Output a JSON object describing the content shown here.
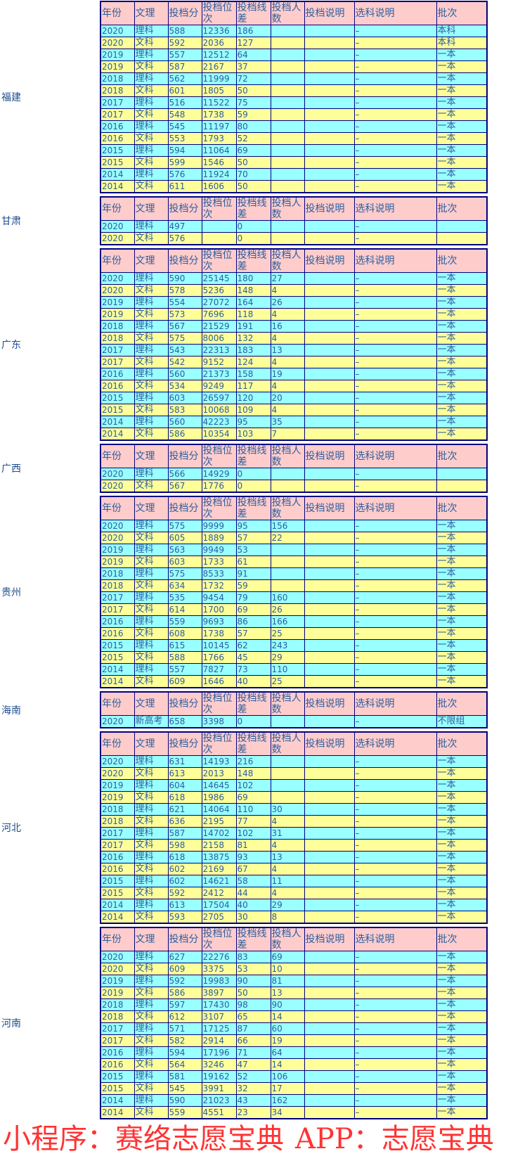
{
  "headers": [
    "年份",
    "文理",
    "投档分",
    "投档位次",
    "投档线差",
    "投档人数",
    "投档说明",
    "选科说明",
    "批次"
  ],
  "provinces": [
    {
      "name": "福建",
      "rows": [
        [
          "2020",
          "理科",
          "588",
          "12336",
          "186",
          "",
          "",
          "–",
          "本科"
        ],
        [
          "2020",
          "文科",
          "592",
          "2036",
          "127",
          "",
          "",
          "–",
          "本科"
        ],
        [
          "2019",
          "理科",
          "557",
          "12512",
          "64",
          "",
          "",
          "–",
          "一本"
        ],
        [
          "2019",
          "文科",
          "587",
          "2167",
          "37",
          "",
          "",
          "–",
          "一本"
        ],
        [
          "2018",
          "理科",
          "562",
          "11999",
          "72",
          "",
          "",
          "–",
          "一本"
        ],
        [
          "2018",
          "文科",
          "601",
          "1805",
          "50",
          "",
          "",
          "–",
          "一本"
        ],
        [
          "2017",
          "理科",
          "516",
          "11522",
          "75",
          "",
          "",
          "–",
          "一本"
        ],
        [
          "2017",
          "文科",
          "548",
          "1738",
          "59",
          "",
          "",
          "–",
          "一本"
        ],
        [
          "2016",
          "理科",
          "545",
          "11197",
          "80",
          "",
          "",
          "–",
          "一本"
        ],
        [
          "2016",
          "文科",
          "553",
          "1793",
          "52",
          "",
          "",
          "–",
          "一本"
        ],
        [
          "2015",
          "理科",
          "594",
          "11064",
          "69",
          "",
          "",
          "–",
          "一本"
        ],
        [
          "2015",
          "文科",
          "599",
          "1546",
          "50",
          "",
          "",
          "–",
          "一本"
        ],
        [
          "2014",
          "理科",
          "576",
          "11924",
          "70",
          "",
          "",
          "–",
          "一本"
        ],
        [
          "2014",
          "文科",
          "611",
          "1606",
          "50",
          "",
          "",
          "–",
          "一本"
        ]
      ]
    },
    {
      "name": "甘肃",
      "rows": [
        [
          "2020",
          "理科",
          "497",
          "",
          "0",
          "",
          "",
          "–",
          ""
        ],
        [
          "2020",
          "文科",
          "576",
          "",
          "0",
          "",
          "",
          "–",
          ""
        ]
      ]
    },
    {
      "name": "广东",
      "rows": [
        [
          "2020",
          "理科",
          "590",
          "25145",
          "180",
          "27",
          "",
          "–",
          "一本"
        ],
        [
          "2020",
          "文科",
          "578",
          "5236",
          "148",
          "4",
          "",
          "–",
          "一本"
        ],
        [
          "2019",
          "理科",
          "554",
          "27072",
          "164",
          "26",
          "",
          "–",
          "一本"
        ],
        [
          "2019",
          "文科",
          "573",
          "7696",
          "118",
          "4",
          "",
          "–",
          "一本"
        ],
        [
          "2018",
          "理科",
          "567",
          "21529",
          "191",
          "16",
          "",
          "–",
          "一本"
        ],
        [
          "2018",
          "文科",
          "575",
          "8006",
          "132",
          "4",
          "",
          "–",
          "一本"
        ],
        [
          "2017",
          "理科",
          "543",
          "22313",
          "183",
          "13",
          "",
          "–",
          "一本"
        ],
        [
          "2017",
          "文科",
          "542",
          "9152",
          "124",
          "4",
          "",
          "–",
          "一本"
        ],
        [
          "2016",
          "理科",
          "560",
          "21373",
          "158",
          "19",
          "",
          "–",
          "一本"
        ],
        [
          "2016",
          "文科",
          "534",
          "9249",
          "117",
          "4",
          "",
          "–",
          "一本"
        ],
        [
          "2015",
          "理科",
          "603",
          "26597",
          "120",
          "20",
          "",
          "–",
          "一本"
        ],
        [
          "2015",
          "文科",
          "583",
          "10068",
          "109",
          "4",
          "",
          "–",
          "一本"
        ],
        [
          "2014",
          "理科",
          "560",
          "42223",
          "95",
          "35",
          "",
          "–",
          "一本"
        ],
        [
          "2014",
          "文科",
          "586",
          "10354",
          "103",
          "7",
          "",
          "–",
          "一本"
        ]
      ]
    },
    {
      "name": "广西",
      "rows": [
        [
          "2020",
          "理科",
          "566",
          "14929",
          "0",
          "",
          "",
          "–",
          ""
        ],
        [
          "2020",
          "文科",
          "567",
          "1776",
          "0",
          "",
          "",
          "–",
          ""
        ]
      ]
    },
    {
      "name": "贵州",
      "rows": [
        [
          "2020",
          "理科",
          "575",
          "9999",
          "95",
          "156",
          "",
          "–",
          "一本"
        ],
        [
          "2020",
          "文科",
          "605",
          "1889",
          "57",
          "22",
          "",
          "–",
          "一本"
        ],
        [
          "2019",
          "理科",
          "563",
          "9949",
          "53",
          "",
          "",
          "–",
          "一本"
        ],
        [
          "2019",
          "文科",
          "603",
          "1733",
          "61",
          "",
          "",
          "–",
          "一本"
        ],
        [
          "2018",
          "理科",
          "575",
          "8533",
          "91",
          "",
          "",
          "–",
          "一本"
        ],
        [
          "2018",
          "文科",
          "634",
          "1732",
          "59",
          "",
          "",
          "–",
          "一本"
        ],
        [
          "2017",
          "理科",
          "535",
          "9454",
          "79",
          "160",
          "",
          "–",
          "一本"
        ],
        [
          "2017",
          "文科",
          "614",
          "1700",
          "69",
          "26",
          "",
          "–",
          "一本"
        ],
        [
          "2016",
          "理科",
          "559",
          "9693",
          "86",
          "166",
          "",
          "–",
          "一本"
        ],
        [
          "2016",
          "文科",
          "608",
          "1738",
          "57",
          "25",
          "",
          "–",
          "一本"
        ],
        [
          "2015",
          "理科",
          "615",
          "10145",
          "62",
          "243",
          "",
          "–",
          "一本"
        ],
        [
          "2015",
          "文科",
          "588",
          "1766",
          "45",
          "29",
          "",
          "–",
          "一本"
        ],
        [
          "2014",
          "理科",
          "557",
          "7827",
          "73",
          "110",
          "",
          "–",
          "一本"
        ],
        [
          "2014",
          "文科",
          "609",
          "1646",
          "40",
          "25",
          "",
          "–",
          "一本"
        ]
      ]
    },
    {
      "name": "海南",
      "rows": [
        [
          "2020",
          "新高考",
          "658",
          "3398",
          "0",
          "",
          "",
          "–",
          "不限组"
        ]
      ]
    },
    {
      "name": "河北",
      "rows": [
        [
          "2020",
          "理科",
          "631",
          "14193",
          "216",
          "",
          "",
          "–",
          "一本"
        ],
        [
          "2020",
          "文科",
          "613",
          "2013",
          "148",
          "",
          "",
          "–",
          "一本"
        ],
        [
          "2019",
          "理科",
          "604",
          "14645",
          "102",
          "",
          "",
          "–",
          "一本"
        ],
        [
          "2019",
          "文科",
          "618",
          "1986",
          "69",
          "",
          "",
          "–",
          "一本"
        ],
        [
          "2018",
          "理科",
          "621",
          "14064",
          "110",
          "30",
          "",
          "–",
          "一本"
        ],
        [
          "2018",
          "文科",
          "636",
          "2195",
          "77",
          "4",
          "",
          "–",
          "一本"
        ],
        [
          "2017",
          "理科",
          "587",
          "14702",
          "102",
          "31",
          "",
          "–",
          "一本"
        ],
        [
          "2017",
          "文科",
          "598",
          "2158",
          "81",
          "4",
          "",
          "–",
          "一本"
        ],
        [
          "2016",
          "理科",
          "618",
          "13875",
          "93",
          "13",
          "",
          "–",
          "一本"
        ],
        [
          "2016",
          "文科",
          "602",
          "2169",
          "67",
          "4",
          "",
          "–",
          "一本"
        ],
        [
          "2015",
          "理科",
          "602",
          "14621",
          "58",
          "11",
          "",
          "–",
          "一本"
        ],
        [
          "2015",
          "文科",
          "592",
          "2412",
          "44",
          "4",
          "",
          "–",
          "一本"
        ],
        [
          "2014",
          "理科",
          "613",
          "17504",
          "40",
          "29",
          "",
          "–",
          "一本"
        ],
        [
          "2014",
          "文科",
          "593",
          "2705",
          "30",
          "8",
          "",
          "–",
          "一本"
        ]
      ]
    },
    {
      "name": "河南",
      "rows": [
        [
          "2020",
          "理科",
          "627",
          "22276",
          "83",
          "69",
          "",
          "–",
          "一本"
        ],
        [
          "2020",
          "文科",
          "609",
          "3375",
          "53",
          "10",
          "",
          "–",
          "一本"
        ],
        [
          "2019",
          "理科",
          "592",
          "19983",
          "90",
          "81",
          "",
          "–",
          "一本"
        ],
        [
          "2019",
          "文科",
          "586",
          "3897",
          "50",
          "13",
          "",
          "–",
          "一本"
        ],
        [
          "2018",
          "理科",
          "597",
          "17430",
          "98",
          "90",
          "",
          "–",
          "一本"
        ],
        [
          "2018",
          "文科",
          "612",
          "3107",
          "65",
          "14",
          "",
          "–",
          "一本"
        ],
        [
          "2017",
          "理科",
          "571",
          "17125",
          "87",
          "60",
          "",
          "–",
          "一本"
        ],
        [
          "2017",
          "文科",
          "582",
          "2914",
          "66",
          "19",
          "",
          "–",
          "一本"
        ],
        [
          "2016",
          "理科",
          "594",
          "17196",
          "71",
          "64",
          "",
          "–",
          "一本"
        ],
        [
          "2016",
          "文科",
          "564",
          "3246",
          "47",
          "14",
          "",
          "–",
          "一本"
        ],
        [
          "2015",
          "理科",
          "581",
          "19162",
          "52",
          "106",
          "",
          "–",
          "一本"
        ],
        [
          "2015",
          "文科",
          "545",
          "3991",
          "32",
          "17",
          "",
          "–",
          "一本"
        ],
        [
          "2014",
          "理科",
          "590",
          "21023",
          "43",
          "162",
          "",
          "–",
          "一本"
        ],
        [
          "2014",
          "文科",
          "559",
          "4551",
          "23",
          "34",
          "",
          "–",
          "一本"
        ]
      ]
    }
  ],
  "watermark": {
    "line1": "小程序：赛络志愿宝典",
    "line2": "APP：志愿宝典"
  },
  "colors": {
    "header_bg": "#ffcccc",
    "row_odd": "#99ffff",
    "row_even": "#ffff99",
    "border": "#000080",
    "text": "#2b5f9e",
    "watermark": "#ff3333"
  }
}
